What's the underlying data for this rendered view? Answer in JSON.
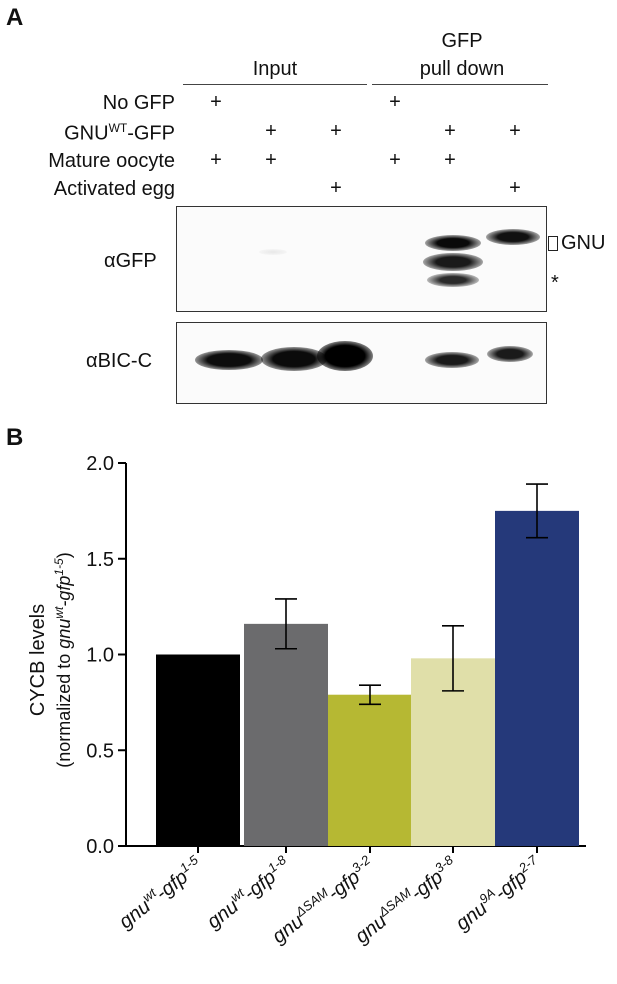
{
  "panel_a": {
    "letter": "A",
    "group_input": "Input",
    "group_pulldown_line1": "GFP",
    "group_pulldown_line2": "pull down",
    "row_labels": {
      "no_gfp": "No GFP",
      "gnu_prefix": "GNU",
      "gnu_sup": "WT",
      "gnu_suffix": "-GFP",
      "mature": "Mature oocyte",
      "activated": "Activated egg"
    },
    "plus": "+",
    "lanes": [
      {
        "no_gfp": true,
        "gnu": false,
        "mature": true,
        "activated": false
      },
      {
        "no_gfp": false,
        "gnu": true,
        "mature": true,
        "activated": false
      },
      {
        "no_gfp": false,
        "gnu": true,
        "mature": false,
        "activated": true
      },
      {
        "no_gfp": true,
        "gnu": false,
        "mature": true,
        "activated": false
      },
      {
        "no_gfp": false,
        "gnu": true,
        "mature": true,
        "activated": false
      },
      {
        "no_gfp": false,
        "gnu": true,
        "mature": false,
        "activated": true
      }
    ],
    "blot_gfp_label": "αGFP",
    "blot_bicc_label": "αBIC-C",
    "gnu_marker": "GNU",
    "star_marker": "*"
  },
  "panel_b": {
    "letter": "B",
    "ylabel_line1": "CYCB levels",
    "ylabel_line2_prefix": "(normalized to ",
    "ylabel_line2_italic": "gnu",
    "ylabel_line2_sup": "wt",
    "ylabel_line2_mid": "-gfp",
    "ylabel_line2_sup2": "1-5",
    "ylabel_line2_suffix": ")",
    "bar_colors": [
      "#000000",
      "#6b6b6d",
      "#b6b833",
      "#e0dfa9",
      "#25397a"
    ]
  },
  "chart_data": {
    "type": "bar",
    "title": "",
    "xlabel": "",
    "ylabel": "CYCB levels (normalized to gnu^wt-gfp^1-5)",
    "ylim": [
      0.0,
      2.0
    ],
    "yticks": [
      "0.0",
      "0.5",
      "1.0",
      "1.5",
      "2.0"
    ],
    "categories": [
      {
        "base": "gnu",
        "sup": "wt",
        "mid": "-gfp",
        "sup2": "1-5"
      },
      {
        "base": "gnu",
        "sup": "wt",
        "mid": "-gfp",
        "sup2": "1-8"
      },
      {
        "base": "gnu",
        "sup": "ΔSAM",
        "mid": "-gfp",
        "sup2": "3-2"
      },
      {
        "base": "gnu",
        "sup": "ΔSAM",
        "mid": "-gfp",
        "sup2": "3-8"
      },
      {
        "base": "gnu",
        "sup": "9A",
        "mid": "-gfp",
        "sup2": "2-7"
      }
    ],
    "values": [
      1.0,
      1.16,
      0.79,
      0.98,
      1.75
    ],
    "errors": [
      0,
      0.13,
      0.05,
      0.17,
      0.14
    ]
  }
}
